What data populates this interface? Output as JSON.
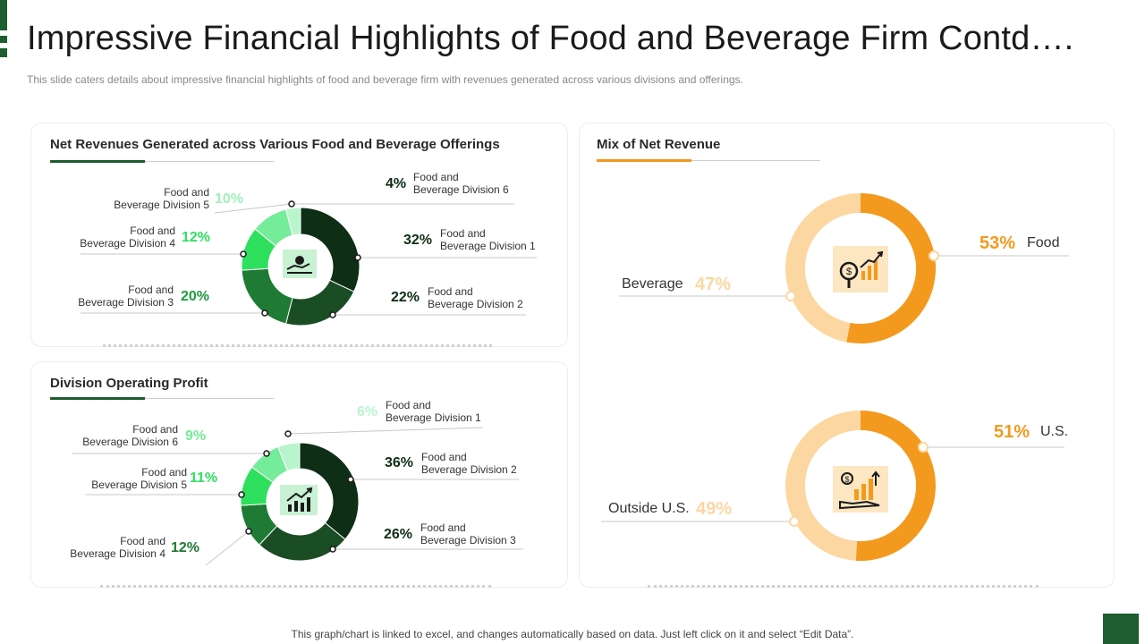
{
  "header": {
    "title": "Impressive Financial Highlights of Food and Beverage Firm Contd….",
    "subtitle": "This slide caters details about impressive  financial highlights of food and beverage  firm with revenues  generated across various divisions and offerings."
  },
  "footer": {
    "note": "This graph/chart is linked to excel,  and changes automatically based on data. Just left click on it and select “Edit Data”."
  },
  "colors": {
    "brand": "#1e5e2e",
    "accent_orange": "#f39a1e",
    "light_orange": "#fcd7a2"
  },
  "chart_data": [
    {
      "type": "pie",
      "title": "Net Revenues Generated across  Various Food and Beverage Offerings",
      "icon": "hand-coin-icon",
      "slices": [
        {
          "label": "Food and\nBeverage Division 1",
          "value": 32,
          "text": "32%",
          "color": "#0e2e16"
        },
        {
          "label": "Food and\nBeverage Division 2",
          "value": 22,
          "text": "22%",
          "color": "#1a4d24"
        },
        {
          "label": "Food and\nBeverage Division 3",
          "value": 20,
          "text": "20%",
          "color": "#1f7a33"
        },
        {
          "label": "Food and\nBeverage Division 4",
          "value": 12,
          "text": "12%",
          "color": "#2ee05e"
        },
        {
          "label": "Food and\nBeverage Division 5",
          "value": 10,
          "text": "10%",
          "color": "#74ec9a"
        },
        {
          "label": "Food and\nBeverage Division 6",
          "value": 4,
          "text": "4%",
          "color": "#b9f5cc"
        }
      ]
    },
    {
      "type": "pie",
      "title": "Division Operating Profit",
      "icon": "growth-chart-icon",
      "slices": [
        {
          "label": "Food and\nBeverage Division 2",
          "value": 36,
          "text": "36%",
          "color": "#0e2e16"
        },
        {
          "label": "Food and\nBeverage Division 3",
          "value": 26,
          "text": "26%",
          "color": "#1a4d24"
        },
        {
          "label": "Food and\nBeverage Division 4",
          "value": 12,
          "text": "12%",
          "color": "#1f7a33"
        },
        {
          "label": "Food and\nBeverage Division 5",
          "value": 11,
          "text": "11%",
          "color": "#2ee05e"
        },
        {
          "label": "Food and\nBeverage Division 6",
          "value": 9,
          "text": "9%",
          "color": "#74ec9a"
        },
        {
          "label": "Food and\nBeverage Division 1",
          "value": 6,
          "text": "6%",
          "color": "#b9f5cc"
        }
      ]
    },
    {
      "type": "pie",
      "title": "Mix of Net Revenue",
      "icon": "magnifier-growth-icon",
      "slices": [
        {
          "label": "Food",
          "value": 53,
          "text": "53%",
          "color": "#f39a1e"
        },
        {
          "label": "Beverage",
          "value": 47,
          "text": "47%",
          "color": "#fcd7a2"
        }
      ]
    },
    {
      "type": "pie",
      "title": "",
      "icon": "hand-bar-chart-icon",
      "slices": [
        {
          "label": "U.S.",
          "value": 51,
          "text": "51%",
          "color": "#f39a1e"
        },
        {
          "label": "Outside U.S.",
          "value": 49,
          "text": "49%",
          "color": "#fcd7a2"
        }
      ]
    }
  ]
}
